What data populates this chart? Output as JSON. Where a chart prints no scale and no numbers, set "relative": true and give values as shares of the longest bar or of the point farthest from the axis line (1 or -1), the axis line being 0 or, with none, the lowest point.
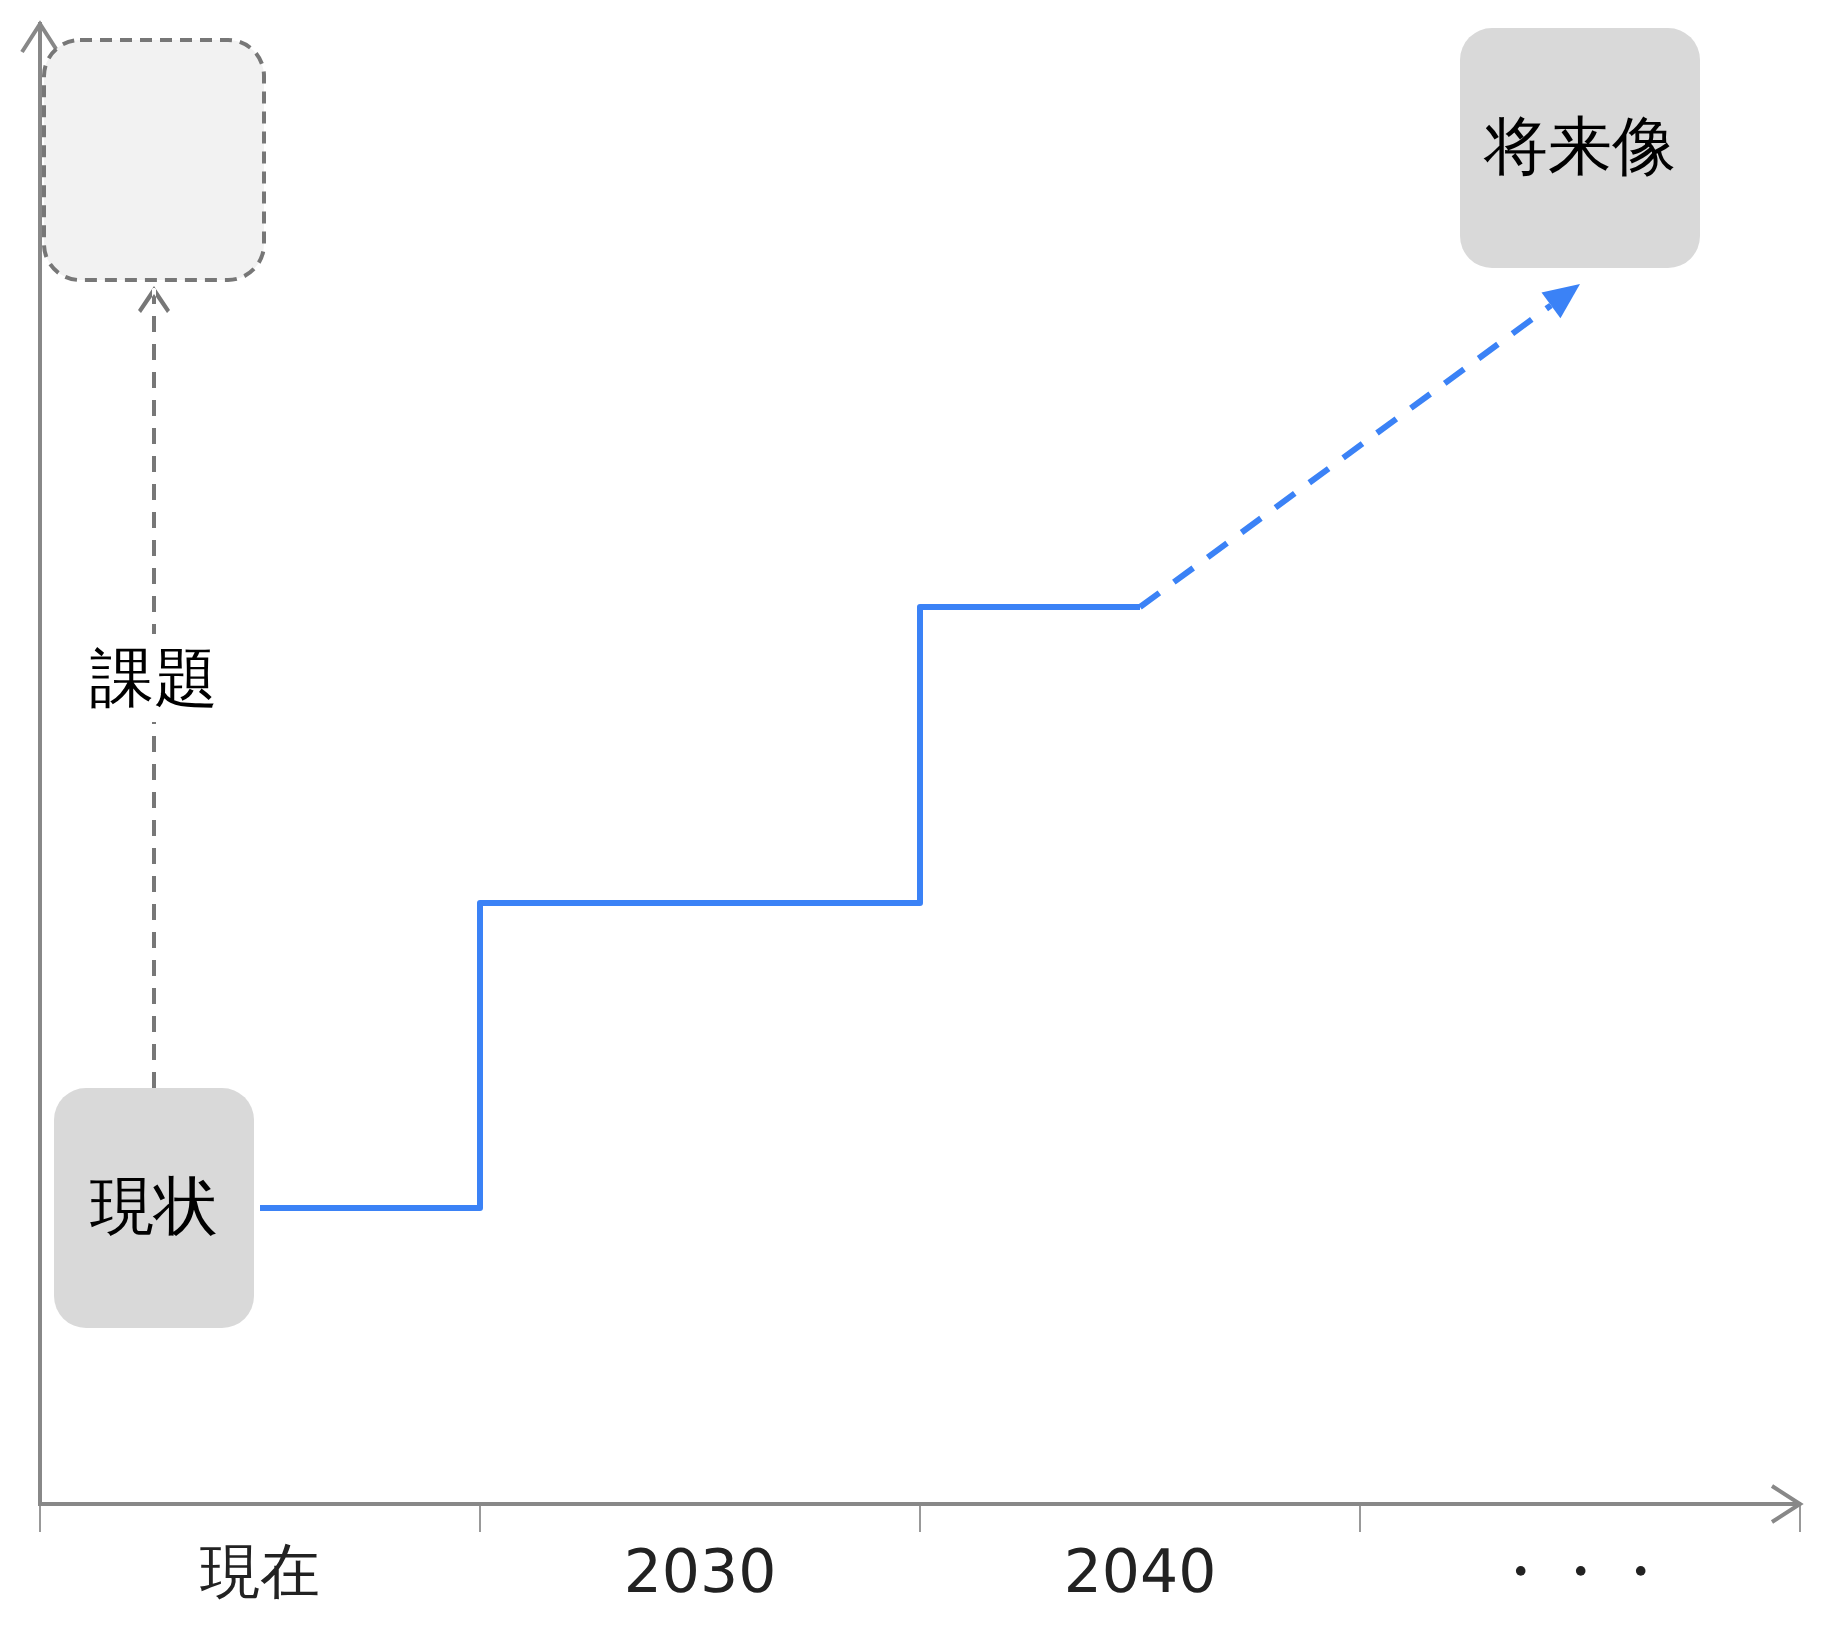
{
  "chart_data": {
    "type": "step",
    "relative": true,
    "categories": [
      "現在",
      "2030",
      "2040",
      "・・・"
    ],
    "series": [
      {
        "color": "#3b82f6",
        "values": [
          0.33,
          0.67,
          1,
          null
        ]
      }
    ],
    "marker": "none",
    "grid": false,
    "legend": false,
    "tick_labels": "x",
    "annotations": [
      "現状",
      "課題",
      "将来像"
    ]
  }
}
